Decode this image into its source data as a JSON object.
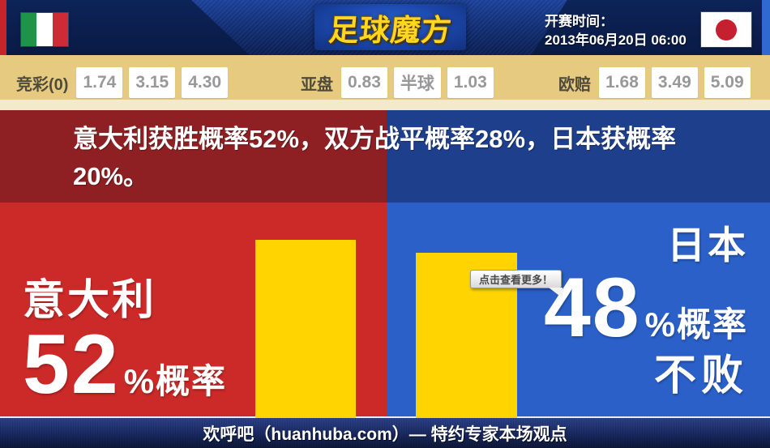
{
  "header": {
    "logo": "足球魔方",
    "kickoff_label": "开赛时间：",
    "kickoff_value": "2013年06月20日 06:00",
    "home_flag_icon": "italy-flag",
    "away_flag_icon": "japan-flag"
  },
  "odds": {
    "groups": [
      {
        "label": "竞彩(0)",
        "v1": "1.74",
        "v2": "3.15",
        "v3": "4.30"
      },
      {
        "label": "亚盘",
        "v1": "0.83",
        "v2": "半球",
        "v3": "1.03"
      },
      {
        "label": "欧赔",
        "v1": "1.68",
        "v2": "3.49",
        "v3": "5.09"
      }
    ]
  },
  "summary": {
    "text": "意大利获胜概率52%，双方战平概率28%，日本获概率20%。"
  },
  "probabilities": {
    "home_win_percent": 52,
    "draw_percent": 28,
    "away_win_percent": 20,
    "away_unbeaten_percent": 48
  },
  "left_panel": {
    "team": "意大利",
    "percent": "52",
    "suffix": "%概率"
  },
  "right_panel": {
    "team": "日本",
    "percent": "48",
    "suffix": "%概率",
    "result": "不败"
  },
  "tooltip": {
    "label": "点击查看更多！"
  },
  "footer": {
    "text": "欢呼吧（huanhuba.com）— 特约专家本场观点"
  },
  "colors": {
    "bright_red": "#cc2a28",
    "dark_red": "#8e2023",
    "bright_blue": "#2a60c8",
    "dark_blue": "#1e3f8c",
    "bar_yellow": "#ffd400",
    "odds_tan": "#e6ca80",
    "logo_gold": "#ffd71e",
    "footer_navy": "#1a2a63"
  }
}
